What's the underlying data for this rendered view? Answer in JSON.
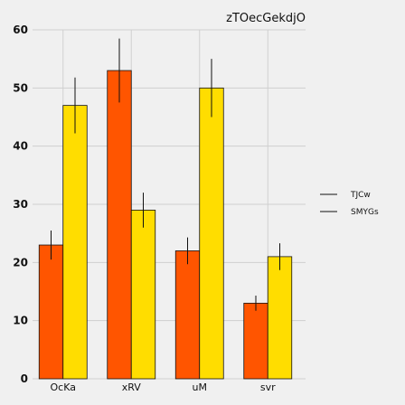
{
  "chart_data": {
    "type": "bar",
    "title": "zTOecGekdjO",
    "xlabel": "",
    "ylabel": "",
    "categories": [
      "OcKa",
      "xRV",
      "uM",
      "svr"
    ],
    "series": [
      {
        "name": "TJCw",
        "values": [
          23,
          53,
          22,
          13
        ],
        "errors": [
          2.5,
          5.5,
          2.3,
          1.3
        ],
        "color": "#ff5500"
      },
      {
        "name": "SMYGs",
        "values": [
          47,
          29,
          50,
          21
        ],
        "errors": [
          4.8,
          3.0,
          5.0,
          2.3
        ],
        "color": "#ffdd00"
      }
    ],
    "ylim": [
      0,
      60
    ],
    "yticks": [
      0,
      10,
      20,
      30,
      40,
      50,
      60
    ],
    "grid": true,
    "legend_position": "right"
  }
}
